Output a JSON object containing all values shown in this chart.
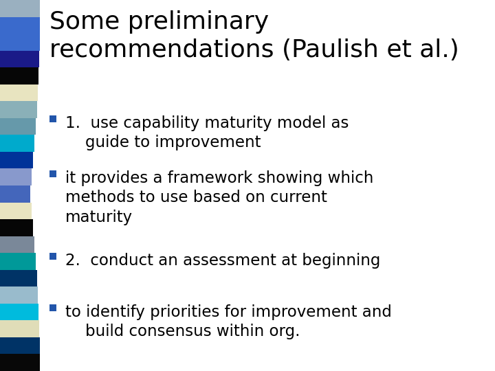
{
  "title_line1": "Some preliminary",
  "title_line2": "recommendations (Paulish et al.)",
  "bullet_groups": [
    {
      "lines": [
        "1.  use capability maturity model as",
        "    guide to improvement"
      ]
    },
    {
      "lines": [
        "it provides a framework showing which",
        "methods to use based on current",
        "maturity"
      ]
    },
    {
      "lines": [
        "2.  conduct an assessment at beginning"
      ]
    },
    {
      "lines": [
        "to identify priorities for improvement and",
        "    build consensus within org."
      ]
    }
  ],
  "bg_color": "#ffffff",
  "text_color": "#000000",
  "title_color": "#000000",
  "bullet_color": "#2255aa",
  "sidebar_colors": [
    "#9ab0c0",
    "#3a6acc",
    "#3a6acc",
    "#1a1a88",
    "#060606",
    "#e8e4c0",
    "#8ab0b8",
    "#6699aa",
    "#00aacc",
    "#003399",
    "#8899cc",
    "#4466bb",
    "#e8e4c0",
    "#060606",
    "#7a8899",
    "#009999",
    "#003366",
    "#99bbcc",
    "#00bbdd",
    "#e0ddb8",
    "#003366",
    "#080808"
  ],
  "title_fontsize": 26,
  "bullet_fontsize": 16.5
}
